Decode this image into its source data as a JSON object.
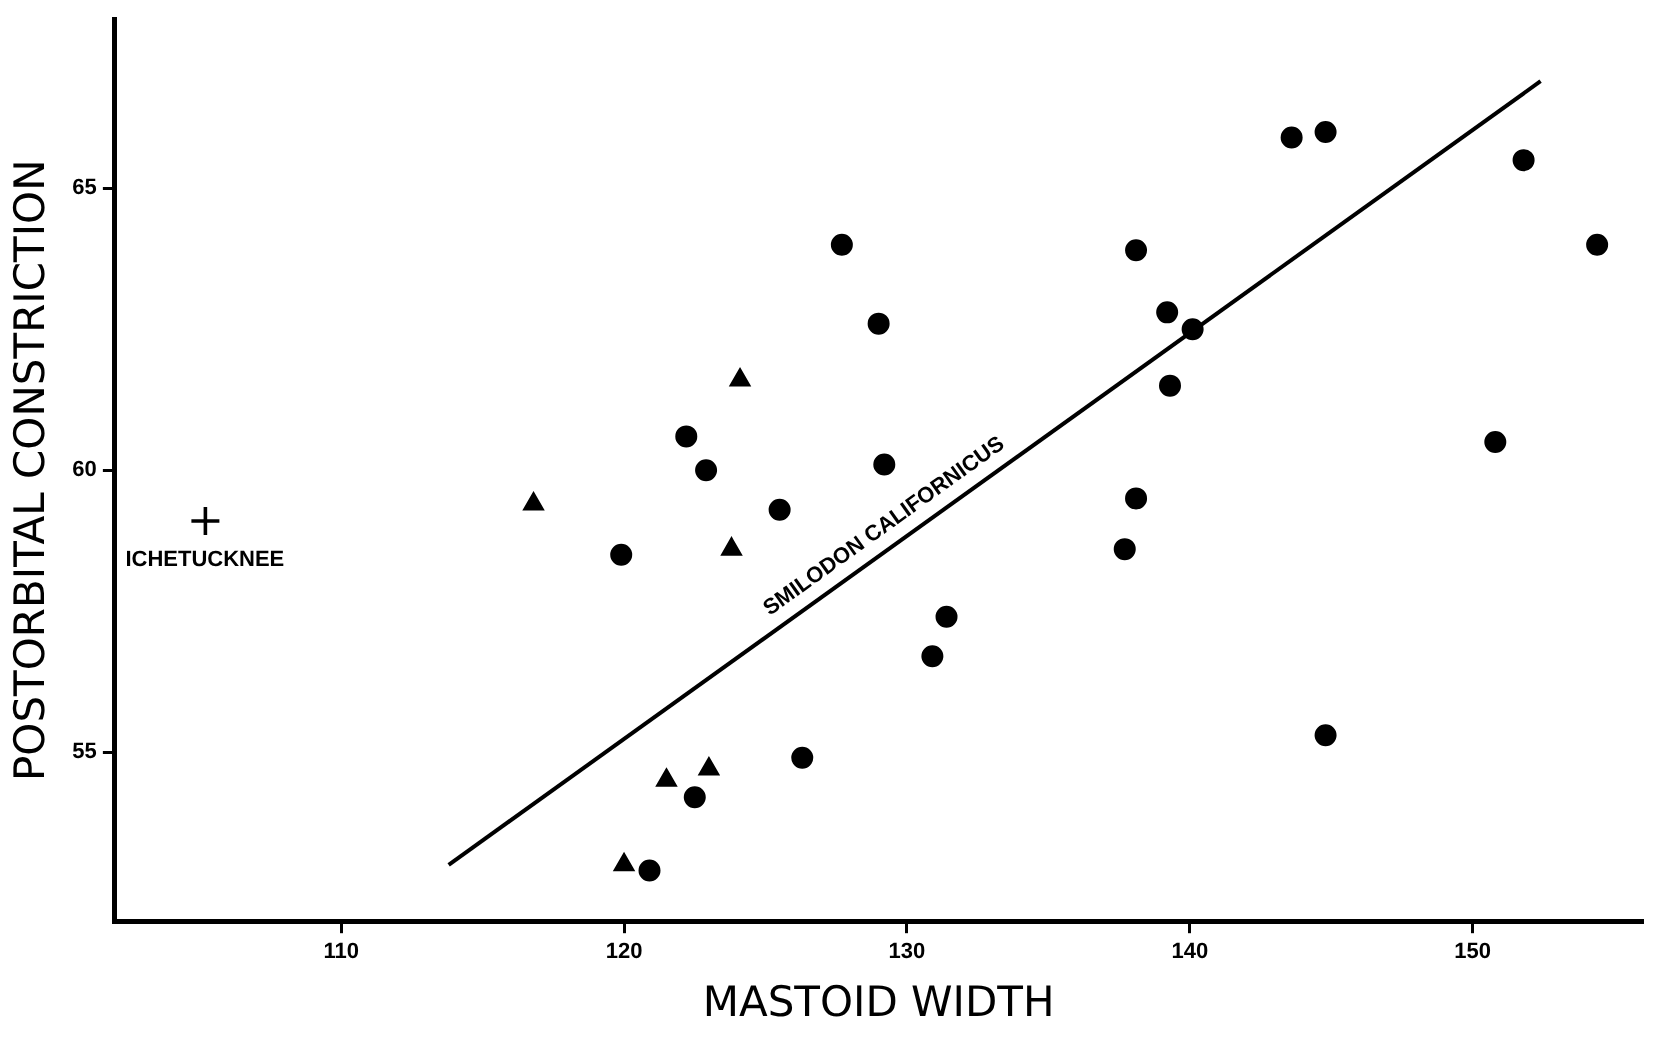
{
  "chart_data": {
    "type": "scatter",
    "xlabel": "MASTOID WIDTH",
    "ylabel": "POSTORBITAL CONSTRICTION",
    "xlim": [
      102,
      156
    ],
    "ylim": [
      52,
      68
    ],
    "xticks": [
      110,
      120,
      130,
      140,
      150
    ],
    "yticks": [
      55,
      60,
      65
    ],
    "grid": false,
    "legend": false,
    "series": [
      {
        "marker": "circle",
        "color": "#000000",
        "x": [
          122.2,
          122.9,
          125.5,
          119.9,
          126.3,
          122.5,
          120.9,
          127.7,
          129.0,
          129.2,
          131.4,
          130.9,
          138.1,
          139.2,
          140.1,
          139.3,
          138.1,
          137.7,
          143.6,
          144.8,
          151.8,
          154.4,
          150.8,
          144.8
        ],
        "values": [
          60.6,
          60.0,
          59.3,
          58.5,
          54.9,
          54.2,
          52.9,
          64.0,
          62.6,
          60.1,
          57.4,
          56.7,
          63.9,
          62.8,
          62.5,
          61.5,
          59.5,
          58.6,
          65.9,
          66.0,
          65.5,
          64.0,
          60.5,
          55.3
        ]
      },
      {
        "marker": "triangle",
        "color": "#000000",
        "x": [
          124.1,
          116.8,
          123.8,
          121.5,
          123.0,
          120.0
        ],
        "values": [
          61.6,
          59.4,
          58.6,
          54.5,
          54.7,
          53.0
        ]
      },
      {
        "marker": "cross",
        "name": "ICHETUCKNEE",
        "color": "#000000",
        "x": [
          105.2
        ],
        "values": [
          59.1
        ]
      },
      {
        "type": "line",
        "marker": "none",
        "line_style": "solid",
        "name": "SMILODON CALIFORNICUS",
        "color": "#000000",
        "x": [
          113.8,
          152.4
        ],
        "values": [
          53.0,
          66.9
        ]
      }
    ]
  }
}
